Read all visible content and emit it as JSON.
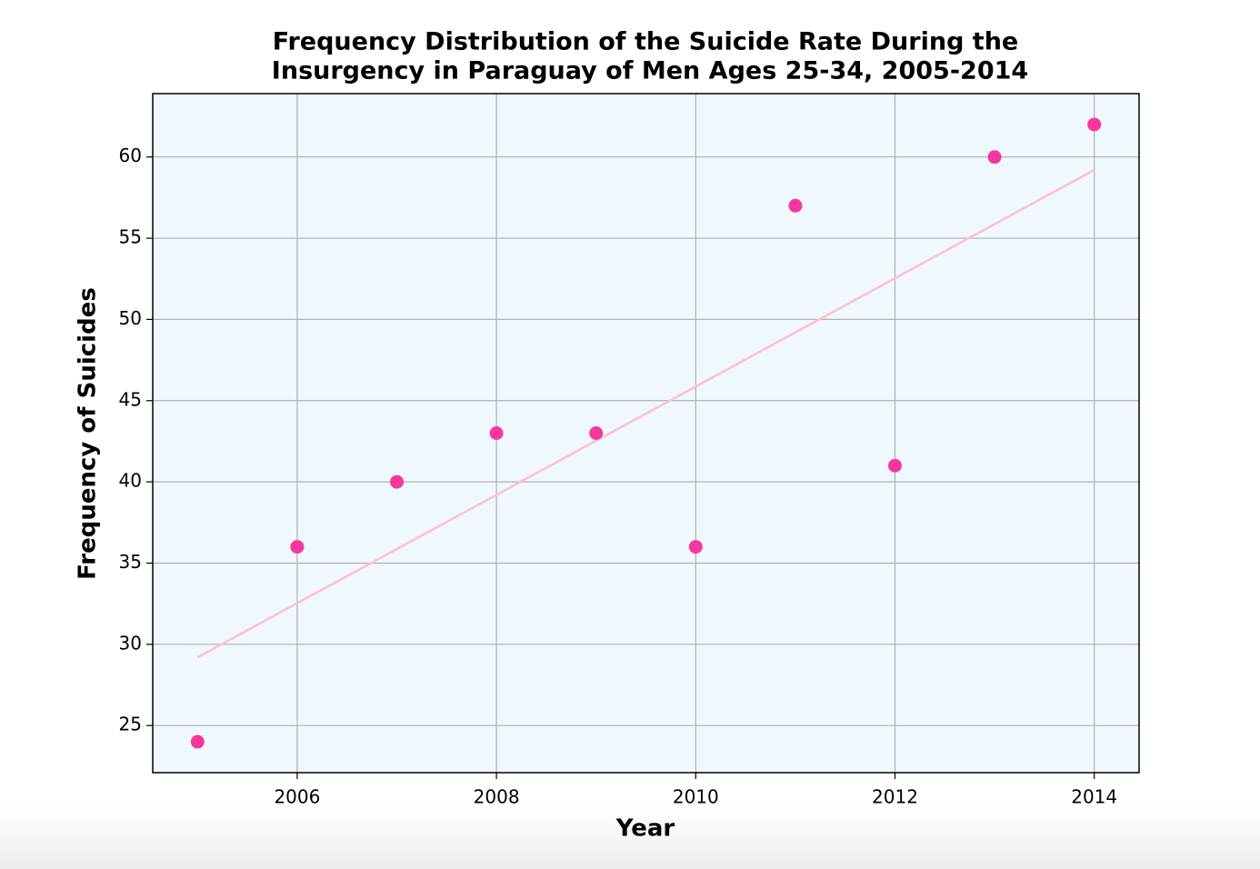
{
  "chart_data": {
    "type": "scatter",
    "title": [
      "Frequency Distribution of the Suicide Rate During the",
      "Insurgency in Paraguay of Men Ages 25-34, 2005-2014"
    ],
    "x_label": "Year",
    "y_label": "Frequency of Suicides",
    "series": [
      {
        "type": "scatter",
        "color": "#f6379e",
        "x": [
          2005,
          2006,
          2007,
          2008,
          2009,
          2010,
          2011,
          2012,
          2013,
          2014
        ],
        "values": [
          24,
          36,
          40,
          43,
          43,
          36,
          57,
          41,
          60,
          62
        ]
      },
      {
        "type": "line",
        "color": "#ffc0cb",
        "x": [
          2005,
          2014
        ],
        "values": [
          29.2,
          59.2
        ]
      }
    ],
    "xlim": [
      2004.55,
      2014.45
    ],
    "ylim": [
      22.1,
      63.9
    ],
    "xticks": [
      2006,
      2008,
      2010,
      2012,
      2014
    ],
    "yticks": [
      25,
      30,
      35,
      40,
      45,
      50,
      55,
      60
    ],
    "grid": true,
    "background": "#f0f8ff"
  }
}
